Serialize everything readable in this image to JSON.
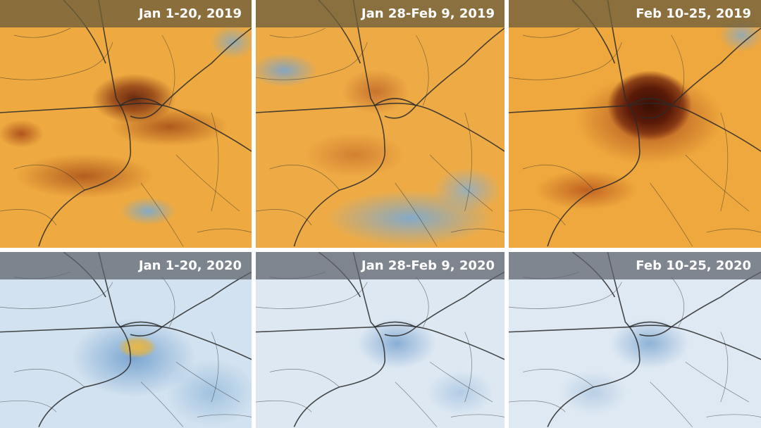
{
  "panels": [
    {
      "label": "Jan 1-20, 2019",
      "year": "2019",
      "color_scheme": "orange"
    },
    {
      "label": "Jan 28-Feb 9, 2019",
      "year": "2019",
      "color_scheme": "orange"
    },
    {
      "label": "Feb 10-25, 2019",
      "year": "2019",
      "color_scheme": "orange"
    },
    {
      "label": "Jan 1-20, 2020",
      "year": "2020",
      "color_scheme": "blue"
    },
    {
      "label": "Jan 28-Feb 9, 2020",
      "year": "2020",
      "color_scheme": "blue"
    },
    {
      "label": "Feb 10-25, 2020",
      "year": "2020",
      "color_scheme": "blue"
    }
  ],
  "colors": {
    "high": "#3a1006",
    "mid": "#eeaa40",
    "low": "#7fb0d8",
    "label_bar": "#5a5a5f"
  }
}
